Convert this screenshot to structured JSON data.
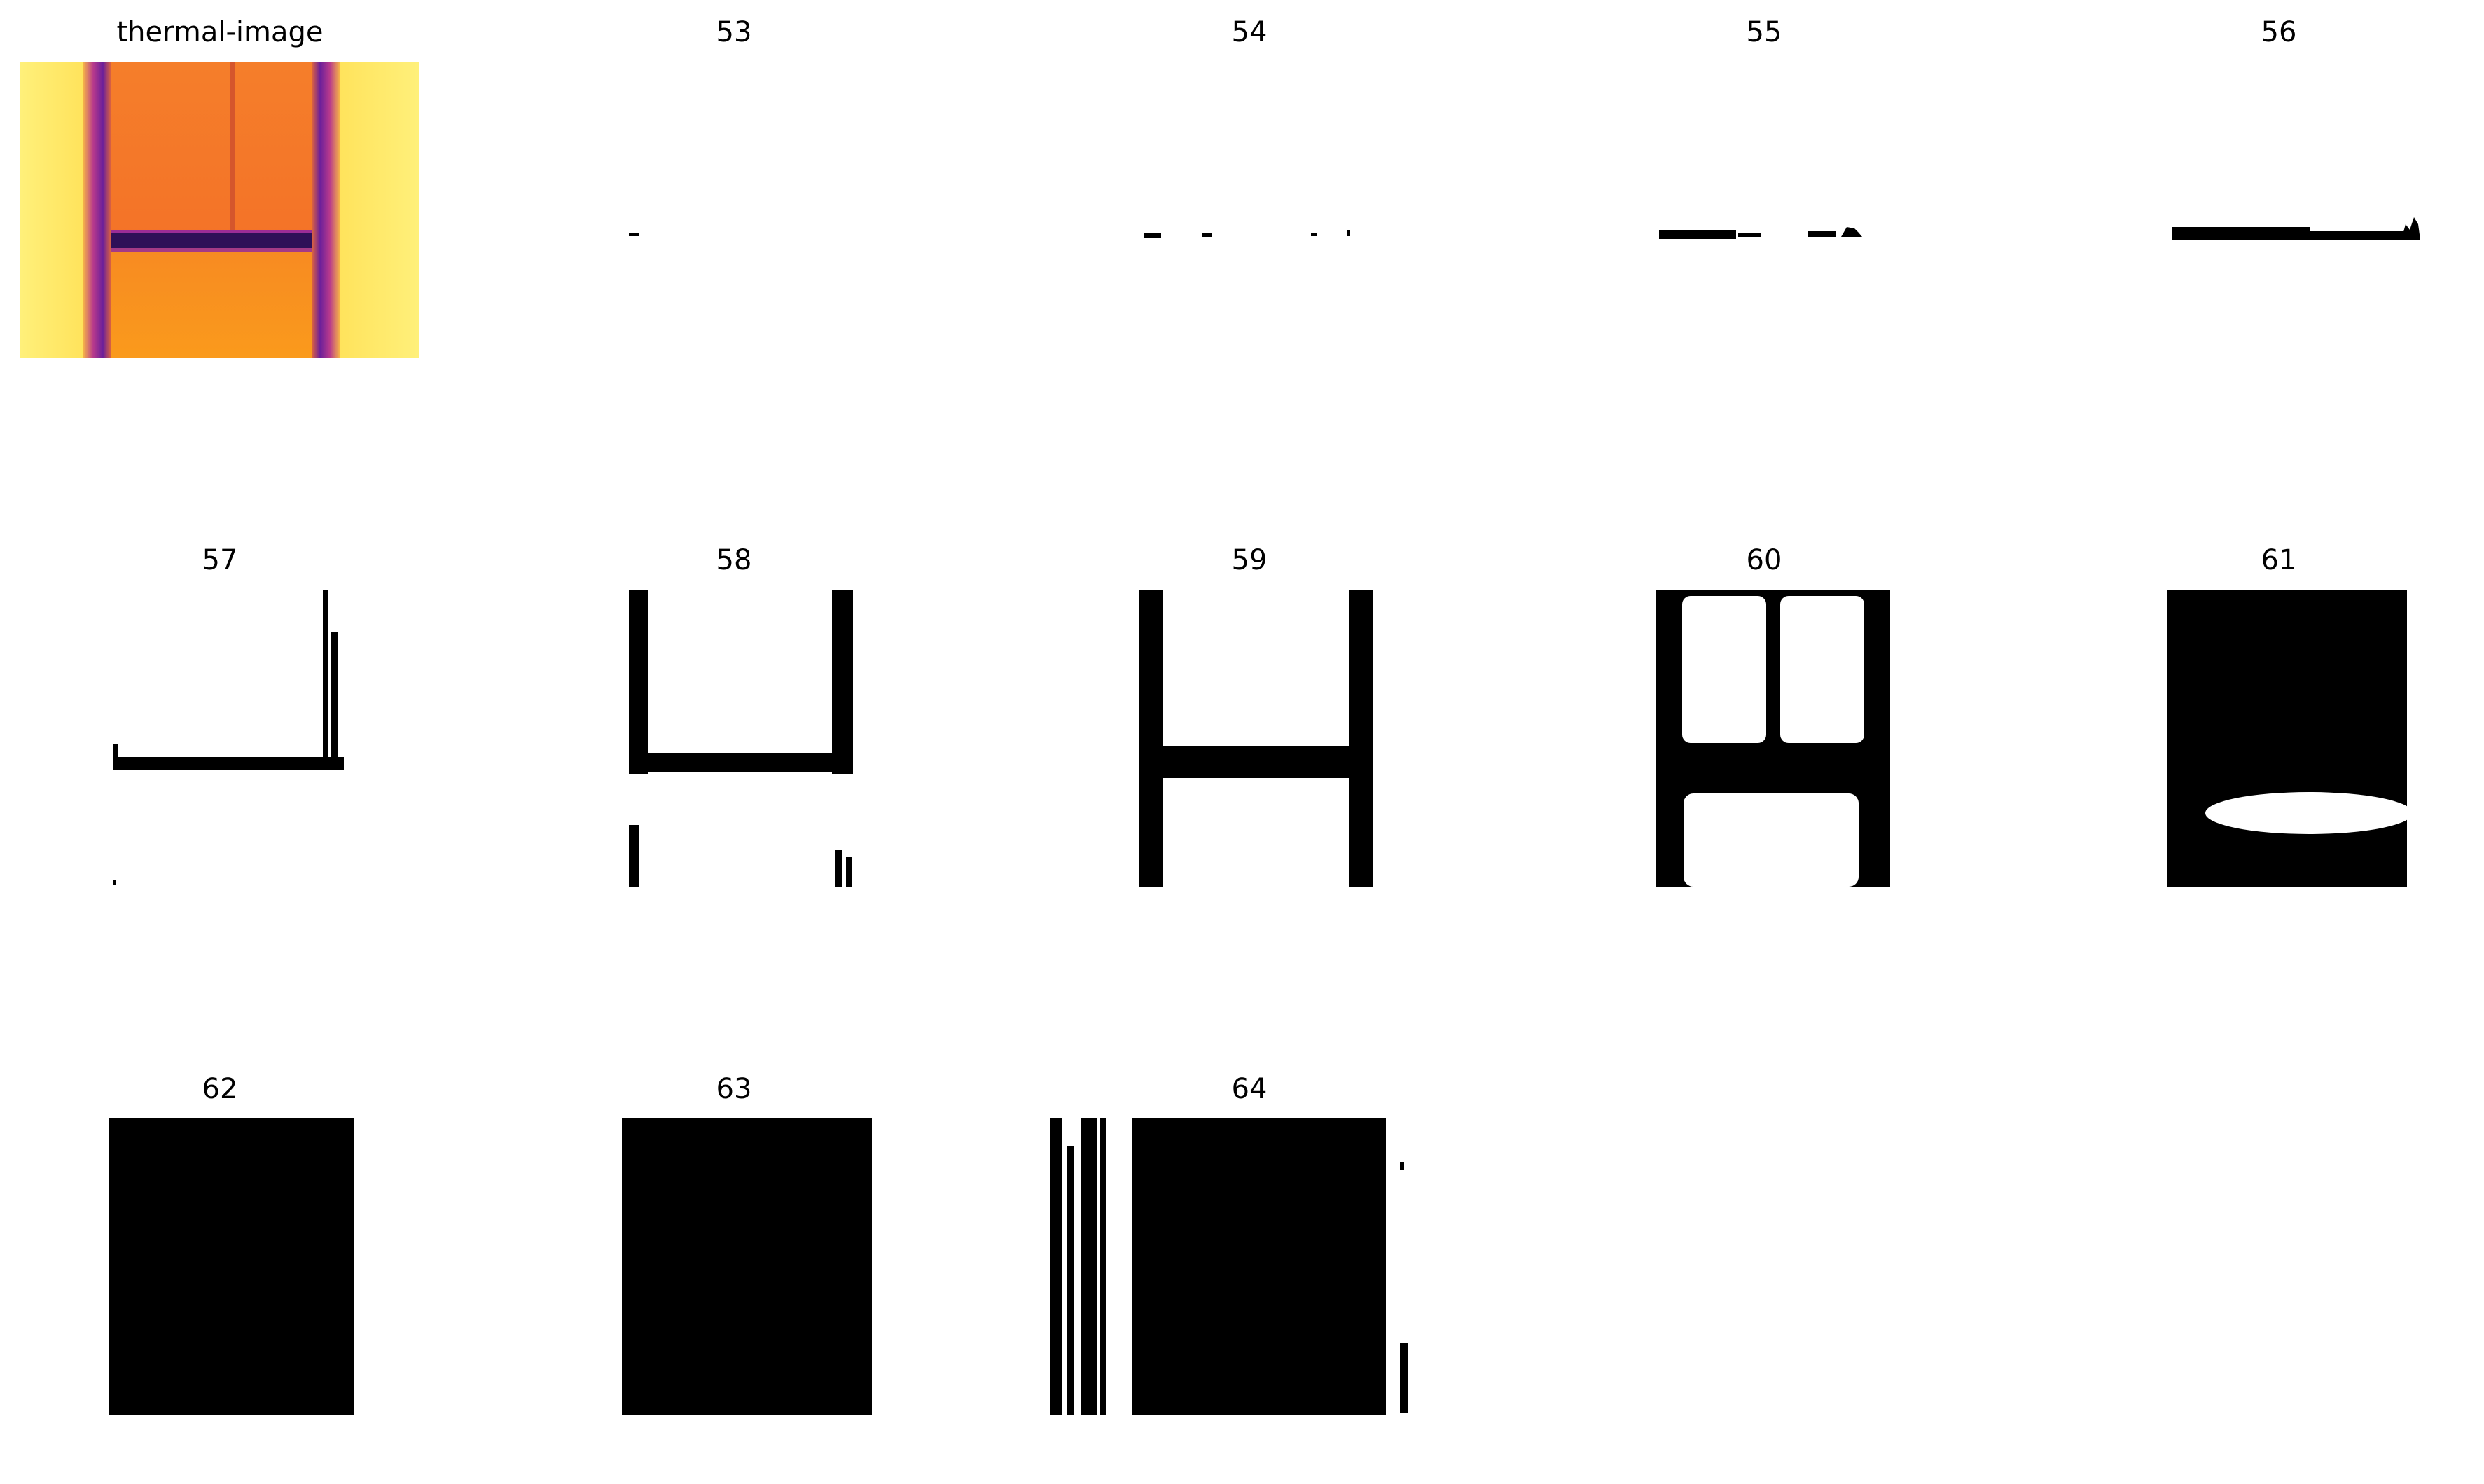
{
  "panels": [
    {
      "title": "thermal-image",
      "kind": "thermal"
    },
    {
      "title": "53",
      "kind": "mask"
    },
    {
      "title": "54",
      "kind": "mask"
    },
    {
      "title": "55",
      "kind": "mask"
    },
    {
      "title": "56",
      "kind": "mask"
    },
    {
      "title": "57",
      "kind": "mask"
    },
    {
      "title": "58",
      "kind": "mask"
    },
    {
      "title": "59",
      "kind": "mask"
    },
    {
      "title": "60",
      "kind": "mask"
    },
    {
      "title": "61",
      "kind": "mask"
    },
    {
      "title": "62",
      "kind": "mask"
    },
    {
      "title": "63",
      "kind": "mask"
    },
    {
      "title": "64",
      "kind": "mask"
    }
  ],
  "colors": {
    "mask_foreground": "#000000",
    "background": "#ffffff",
    "thermal_hot": "#ffe866",
    "thermal_warm": "#f9861d",
    "thermal_cool": "#8a2aa0",
    "thermal_cold": "#2b0c53"
  }
}
